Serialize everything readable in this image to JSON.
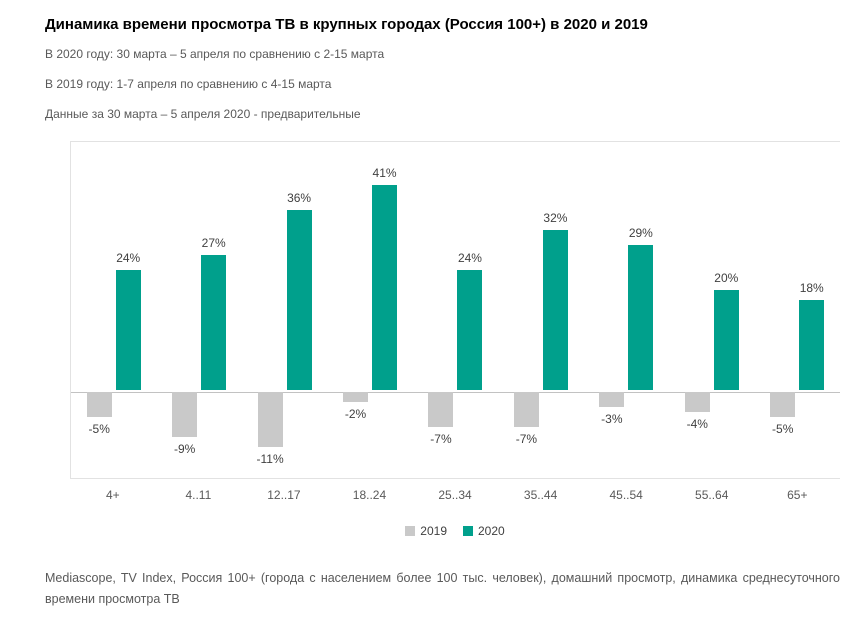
{
  "header": {
    "title": "Динамика времени просмотра ТВ в крупных городах (Россия 100+) в 2020 и 2019",
    "subtitle_2020": "В 2020 году: 30 марта – 5 апреля по сравнению с 2-15 марта",
    "subtitle_2019": "В 2019 году: 1-7 апреля по сравнению с 4-15 марта",
    "subtitle_note": "Данные за 30 марта – 5 апреля 2020 - предварительные"
  },
  "chart_data": {
    "type": "bar",
    "categories": [
      "4+",
      "4..11",
      "12..17",
      "18..24",
      "25..34",
      "35..44",
      "45..54",
      "55..64",
      "65+"
    ],
    "series": [
      {
        "name": "2019",
        "color": "#c9c9c9",
        "values": [
          -5,
          -9,
          -11,
          -2,
          -7,
          -7,
          -3,
          -4,
          -5
        ]
      },
      {
        "name": "2020",
        "color": "#00a08c",
        "values": [
          24,
          27,
          36,
          41,
          24,
          32,
          29,
          20,
          18
        ]
      }
    ],
    "value_suffix": "%",
    "ylim": [
      -18,
      50
    ],
    "grid": false,
    "legend_position": "bottom"
  },
  "footer": {
    "source": "Mediascope, TV Index, Россия 100+ (города с населением более 100 тыс. человек), домашний просмотр, динамика среднесуточного времени просмотра ТВ"
  }
}
